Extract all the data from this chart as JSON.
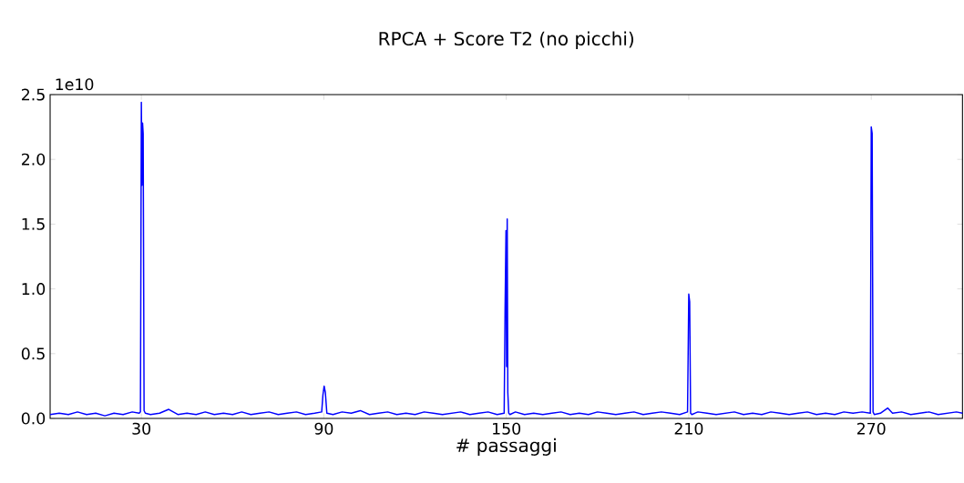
{
  "chart_data": {
    "type": "line",
    "title": "RPCA + Score T2 (no picchi)",
    "xlabel": "# passaggi",
    "annotations": [
      "1e10"
    ],
    "series": [
      {
        "color": "#0000ff",
        "x": [
          0,
          3,
          6,
          9,
          12,
          15,
          18,
          21,
          24,
          27,
          29.3,
          29.7,
          30.0,
          30.2,
          30.4,
          30.6,
          30.9,
          31.3,
          33,
          36,
          39,
          42,
          45,
          48,
          51,
          54,
          57,
          60,
          63,
          66,
          69,
          72,
          75,
          78,
          81,
          84,
          87,
          89.3,
          89.7,
          90.1,
          90.5,
          91,
          93,
          96,
          99,
          102,
          105,
          108,
          111,
          114,
          117,
          120,
          123,
          126,
          129,
          132,
          135,
          138,
          141,
          144,
          147,
          149.3,
          149.6,
          149.9,
          150.1,
          150.3,
          150.5,
          150.8,
          151.2,
          153,
          156,
          159,
          162,
          165,
          168,
          171,
          174,
          177,
          180,
          183,
          186,
          189,
          192,
          195,
          198,
          201,
          204,
          207,
          209.6,
          210.0,
          210.3,
          210.6,
          211,
          213,
          216,
          219,
          222,
          225,
          228,
          231,
          234,
          237,
          240,
          243,
          246,
          249,
          252,
          255,
          258,
          261,
          264,
          267,
          269.7,
          270.0,
          270.3,
          270.6,
          271,
          273,
          275.4,
          277,
          280,
          283,
          286,
          289,
          292,
          295,
          298,
          300
        ],
        "values": [
          0.03,
          0.04,
          0.03,
          0.05,
          0.03,
          0.04,
          0.02,
          0.04,
          0.03,
          0.05,
          0.04,
          0.05,
          2.44,
          1.8,
          2.28,
          2.2,
          0.06,
          0.04,
          0.03,
          0.04,
          0.07,
          0.03,
          0.04,
          0.03,
          0.05,
          0.03,
          0.04,
          0.03,
          0.05,
          0.03,
          0.04,
          0.05,
          0.03,
          0.04,
          0.05,
          0.03,
          0.04,
          0.05,
          0.18,
          0.25,
          0.2,
          0.04,
          0.03,
          0.05,
          0.04,
          0.06,
          0.03,
          0.04,
          0.05,
          0.03,
          0.04,
          0.03,
          0.05,
          0.04,
          0.03,
          0.04,
          0.05,
          0.03,
          0.04,
          0.05,
          0.03,
          0.04,
          0.85,
          1.45,
          0.4,
          1.54,
          0.2,
          0.04,
          0.03,
          0.05,
          0.03,
          0.04,
          0.03,
          0.04,
          0.05,
          0.03,
          0.04,
          0.03,
          0.05,
          0.04,
          0.03,
          0.04,
          0.05,
          0.03,
          0.04,
          0.05,
          0.04,
          0.03,
          0.05,
          0.96,
          0.9,
          0.04,
          0.03,
          0.05,
          0.04,
          0.03,
          0.04,
          0.05,
          0.03,
          0.04,
          0.03,
          0.05,
          0.04,
          0.03,
          0.04,
          0.05,
          0.03,
          0.04,
          0.03,
          0.05,
          0.04,
          0.05,
          0.04,
          2.25,
          2.2,
          0.05,
          0.03,
          0.04,
          0.08,
          0.04,
          0.05,
          0.03,
          0.04,
          0.05,
          0.03,
          0.04,
          0.05,
          0.04
        ]
      }
    ],
    "xlim": [
      0,
      300
    ],
    "xticks": [
      30,
      90,
      150,
      210,
      270
    ],
    "ylim": [
      0,
      2.5
    ],
    "yticks": [
      {
        "value": 0,
        "label": "0.0"
      },
      {
        "value": 0.5,
        "label": "0.5"
      },
      {
        "value": 1,
        "label": "1.0"
      },
      {
        "value": 1.5,
        "label": "1.5"
      },
      {
        "value": 2,
        "label": "2.0"
      },
      {
        "value": 2.5,
        "label": "2.5"
      }
    ]
  }
}
